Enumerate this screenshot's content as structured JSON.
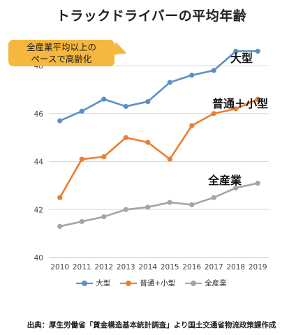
{
  "title": "トラックドライバーの平均年齢",
  "callout": {
    "line1": "全産業平均以上の",
    "line2": "ペースで高齢化"
  },
  "source": "出典：厚生労働省「賃金構造基本統計調査」より国土交通省物流政策課作成",
  "chart_data": {
    "type": "line",
    "title": "トラックドライバーの平均年齢",
    "x": [
      "2010",
      "2011",
      "2012",
      "2013",
      "2014",
      "2015",
      "2016",
      "2017",
      "2018",
      "2019"
    ],
    "ylim": [
      40,
      48
    ],
    "yticks": [
      40,
      42,
      44,
      46,
      48
    ],
    "grid": true,
    "legend_position": "bottom",
    "series": [
      {
        "name": "大型",
        "color": "#5b8fc9",
        "values": [
          45.7,
          46.1,
          46.6,
          46.3,
          46.5,
          47.3,
          47.6,
          47.8,
          48.6,
          48.6
        ]
      },
      {
        "name": "普通+小型",
        "label": "普通＋小型",
        "color": "#ec7d31",
        "values": [
          42.5,
          44.1,
          44.2,
          45.0,
          44.8,
          44.1,
          45.5,
          46.0,
          46.2,
          46.6
        ]
      },
      {
        "name": "全産業",
        "color": "#a5a5a5",
        "values": [
          41.3,
          41.5,
          41.7,
          42.0,
          42.1,
          42.3,
          42.2,
          42.5,
          42.9,
          43.1
        ]
      }
    ]
  }
}
